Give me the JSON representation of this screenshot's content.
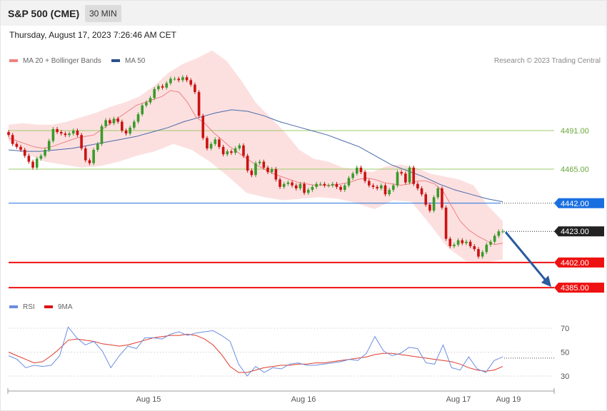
{
  "header": {
    "instrument": "S&P 500 (CME)",
    "timeframe": "30 MIN",
    "timestamp": "Thursday, August 17, 2023 7:26:46 AM CET"
  },
  "legend": {
    "ma20_label": "MA 20 + Bollinger Bands",
    "ma50_label": "MA 50",
    "copyright": "Research © 2023 Trading Central",
    "rsi_label": "RSI",
    "rsi_ma_label": "9MA"
  },
  "colors": {
    "bull": "#3a9a2a",
    "bear": "#cc1111",
    "bollinger": "#fbd5d5",
    "ma20": "#f08080",
    "ma50": "#4a6aa8",
    "support": "#ee1111",
    "resistance_line": "#1a6fe0",
    "pivot": "#9ccc6a",
    "last": "#222222",
    "rsi": "#6b8de0",
    "rsi_ma": "#e03a2a",
    "arrow": "#2a5aa0"
  },
  "chart_data": [
    {
      "type": "candlestick",
      "title": "S&P 500 (CME) 30 MIN",
      "x_ticks": [
        "Aug 15",
        "Aug 16",
        "Aug 17",
        "Aug 19"
      ],
      "price_levels": [
        {
          "value": 4491.0,
          "label": "4491.00",
          "kind": "pivot"
        },
        {
          "value": 4465.0,
          "label": "4465.00",
          "kind": "pivot"
        },
        {
          "value": 4442.0,
          "label": "4442.00",
          "kind": "resistance"
        },
        {
          "value": 4423.0,
          "label": "4423.00",
          "kind": "last"
        },
        {
          "value": 4402.0,
          "label": "4402.00",
          "kind": "support"
        },
        {
          "value": 4385.0,
          "label": "4385.00",
          "kind": "support"
        }
      ],
      "close_series": [
        4488,
        4482,
        4480,
        4478,
        4474,
        4470,
        4466,
        4472,
        4474,
        4478,
        4484,
        4492,
        4490,
        4489,
        4488,
        4489,
        4491,
        4488,
        4479,
        4471,
        4469,
        4478,
        4482,
        4494,
        4498,
        4496,
        4499,
        4497,
        4491,
        4489,
        4493,
        4497,
        4502,
        4508,
        4510,
        4513,
        4519,
        4521,
        4520,
        4523,
        4526,
        4526,
        4525,
        4527,
        4525,
        4522,
        4517,
        4501,
        4486,
        4479,
        4482,
        4485,
        4480,
        4475,
        4477,
        4476,
        4479,
        4481,
        4474,
        4464,
        4461,
        4469,
        4470,
        4466,
        4463,
        4465,
        4458,
        4453,
        4455,
        4456,
        4454,
        4452,
        4455,
        4449,
        4451,
        4453,
        4455,
        4455,
        4454,
        4454,
        4455,
        4453,
        4451,
        4454,
        4459,
        4462,
        4466,
        4463,
        4457,
        4454,
        4453,
        4452,
        4454,
        4448,
        4451,
        4454,
        4463,
        4462,
        4456,
        4466,
        4455,
        4452,
        4448,
        4441,
        4437,
        4446,
        4452,
        4439,
        4418,
        4413,
        4414,
        4417,
        4415,
        4416,
        4413,
        4411,
        4406,
        4409,
        4414,
        4416,
        4420,
        4423,
        4423
      ],
      "ma20_approx": [
        4486,
        4484,
        4482,
        4480,
        4479,
        4480,
        4482,
        4484,
        4486,
        4487,
        4488,
        4492,
        4496,
        4500,
        4504,
        4508,
        4510,
        4512,
        4514,
        4518,
        4517,
        4510,
        4500,
        4496,
        4490,
        4485,
        4480,
        4476,
        4472,
        4468,
        4465,
        4462,
        4460,
        4458,
        4456,
        4455,
        4454,
        4454,
        4454,
        4455,
        4456,
        4458,
        4459,
        4458,
        4456,
        4455,
        4454,
        4455,
        4457,
        4457,
        4455,
        4450,
        4440,
        4430,
        4424,
        4420,
        4417,
        4414,
        4415
      ],
      "ma50_approx": [
        4478,
        4477,
        4477,
        4478,
        4479,
        4481,
        4483,
        4485,
        4487,
        4490,
        4493,
        4497,
        4500,
        4503,
        4505,
        4504,
        4501,
        4497,
        4494,
        4491,
        4488,
        4484,
        4480,
        4474,
        4468,
        4464,
        4460,
        4455,
        4451,
        4448,
        4445,
        4443
      ],
      "bollinger_upper_approx": [
        4495,
        4496,
        4495,
        4495,
        4497,
        4500,
        4503,
        4507,
        4510,
        4514,
        4521,
        4530,
        4536,
        4540,
        4545,
        4538,
        4525,
        4510,
        4500,
        4490,
        4478,
        4472,
        4470,
        4466,
        4465,
        4463,
        4467,
        4468,
        4466,
        4462,
        4460,
        4458,
        4454,
        4440,
        4430
      ],
      "bollinger_lower_approx": [
        4484,
        4475,
        4470,
        4468,
        4466,
        4467,
        4470,
        4474,
        4477,
        4482,
        4478,
        4470,
        4460,
        4449,
        4446,
        4444,
        4445,
        4446,
        4445,
        4442,
        4438,
        4444,
        4443,
        4428,
        4412,
        4403,
        4402,
        4404
      ],
      "projection": {
        "from": 4423.0,
        "to": 4385.0
      }
    },
    {
      "type": "line",
      "title": "RSI",
      "y_ticks": [
        70,
        50,
        30
      ],
      "series": [
        {
          "name": "RSI",
          "values": [
            47,
            44,
            37,
            39,
            38,
            39,
            47,
            71,
            62,
            56,
            59,
            51,
            37,
            47,
            55,
            53,
            62,
            62,
            61,
            65,
            67,
            64,
            66,
            67,
            68,
            64,
            59,
            40,
            30,
            38,
            33,
            37,
            36,
            40,
            41,
            39,
            39,
            40,
            41,
            42,
            44,
            43,
            49,
            63,
            51,
            47,
            49,
            54,
            53,
            41,
            40,
            56,
            37,
            35,
            46,
            36,
            33,
            43,
            46
          ]
        },
        {
          "name": "9MA",
          "values": [
            50,
            47,
            44,
            41,
            42,
            47,
            53,
            60,
            61,
            60,
            59,
            57,
            56,
            55,
            56,
            58,
            60,
            62,
            63,
            64,
            64,
            65,
            64,
            61,
            56,
            48,
            38,
            33,
            33,
            35,
            37,
            38,
            39,
            39,
            40,
            40,
            41,
            41,
            42,
            43,
            44,
            45,
            46,
            48,
            49,
            49,
            48,
            47,
            46,
            45,
            44,
            43,
            42,
            40,
            37,
            35,
            34,
            35,
            38
          ]
        }
      ],
      "last_value": 45
    }
  ]
}
